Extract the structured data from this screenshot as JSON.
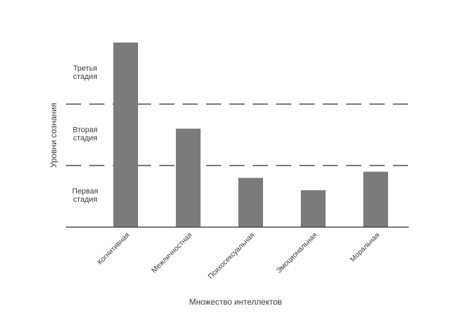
{
  "chart_data": {
    "type": "bar",
    "title": "",
    "xlabel": "Множество интеллектов",
    "ylabel": "Уровни сознания",
    "categories": [
      "Когнитивная",
      "Межличностная",
      "Психосексуальная",
      "Эмоциональная",
      "Моральная"
    ],
    "values": [
      3.0,
      1.6,
      0.8,
      0.6,
      0.9
    ],
    "ylim": [
      0,
      3
    ],
    "grid": false,
    "legend": "none",
    "bar_color": "#7b7b7d",
    "level_lines": [
      1,
      2
    ],
    "stages": [
      {
        "line1": "Первая",
        "line2": "стадия",
        "mid": 0.5
      },
      {
        "line1": "Вторая",
        "line2": "стадия",
        "mid": 1.5
      },
      {
        "line1": "Третья",
        "line2": "стадия",
        "mid": 2.5
      }
    ]
  }
}
